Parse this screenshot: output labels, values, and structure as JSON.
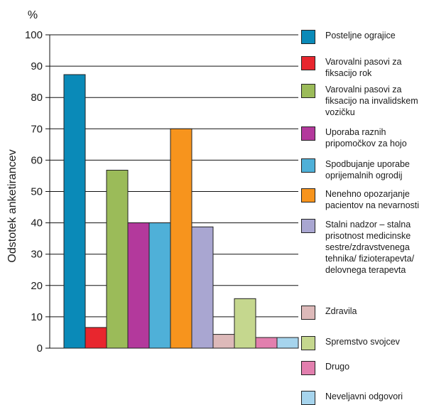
{
  "chart_data": {
    "type": "bar",
    "y_unit": "%",
    "ylabel": "Odstotek anketirancev",
    "ylim": [
      0,
      100
    ],
    "yticks": [
      0,
      10,
      20,
      30,
      40,
      50,
      60,
      70,
      80,
      90,
      100
    ],
    "grid": true,
    "legend_position": "right",
    "categories": [
      "Posteljne ograjice",
      "Varovalni pasovi za fiksacijo rok",
      "Varovalni pasovi za fiksacijo na invalidskem vozičku",
      "Uporaba raznih pripomočkov za hojo",
      "Spodbujanje uporabe oprijemalnih ogrodij",
      "Nenehno opozarjanje pacientov na nevarnosti",
      "Stalni nadzor – stalna prisotnost medicinske sestre/zdravstvenega tehnika/ fizioterapevta/ delovnega terapevta",
      "Zdravila",
      "Spremstvo svojcev",
      "Drugo",
      "Neveljavni odgovori"
    ],
    "values": [
      87.3,
      6.6,
      56.8,
      40,
      40,
      70,
      38.7,
      4.4,
      15.8,
      3.4,
      3.4
    ],
    "colors": [
      "#0a8ab8",
      "#e8262e",
      "#9bbb59",
      "#b3399c",
      "#4fb0d8",
      "#f7941d",
      "#a9a6d1",
      "#ddb9b9",
      "#c5d78e",
      "#e27fae",
      "#a6d4ed"
    ],
    "legend_labels": [
      [
        "Posteljne ograjice"
      ],
      [
        "Varovalni pasovi za",
        "fiksacijo rok"
      ],
      [
        "Varovalni pasovi za",
        "fiksacijo na invalidskem",
        "vozičku"
      ],
      [
        "Uporaba raznih",
        "pripomočkov za hojo"
      ],
      [
        "Spodbujanje uporabe",
        "oprijemalnih ogrodij"
      ],
      [
        "Nenehno opozarjanje",
        "pacientov na nevarnosti"
      ],
      [
        "Stalni nadzor – stalna",
        "prisotnost medicinske",
        "sestre/zdravstvenega",
        "tehnika/ fizioterapevta/",
        "delovnega terapevta"
      ],
      [
        "Zdravila"
      ],
      [
        "Spremstvo svojcev"
      ],
      [
        "Drugo"
      ],
      [
        "Neveljavni odgovori"
      ]
    ]
  }
}
